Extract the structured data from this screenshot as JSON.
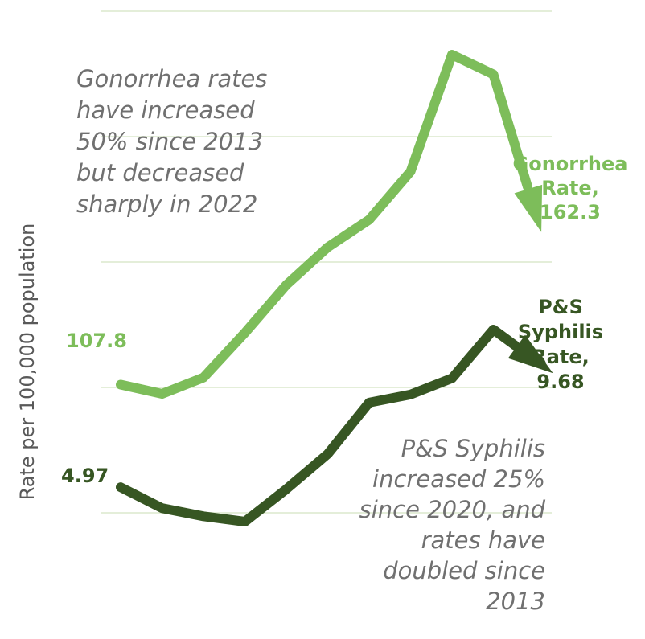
{
  "chart_data": {
    "type": "line",
    "ylabel": "Rate per 100,000 population",
    "grid": true,
    "series": [
      {
        "name": "Gonorrhea",
        "color": "#7dbd5a",
        "values": [
          107.8,
          104.9,
          110.0,
          124.0,
          139.0,
          150.8,
          159.4,
          174.5,
          211.1,
          204.9,
          162.3
        ],
        "start_label": "107.8",
        "end_label": [
          "Gonorrhea",
          "Rate,",
          "162.3"
        ],
        "trend_direction": "down"
      },
      {
        "name": "P&S Syphilis",
        "color": "#375623",
        "values": [
          4.97,
          4.2,
          3.9,
          3.7,
          4.9,
          6.2,
          8.1,
          8.4,
          9.0,
          10.8,
          9.68
        ],
        "start_label": "4.97",
        "end_label": [
          "P&S",
          "Syphilis",
          "Rate,",
          "9.68"
        ],
        "trend_direction": "up"
      }
    ],
    "annotations": [
      {
        "series": "Gonorrhea",
        "lines": [
          "Gonorrhea rates",
          "have increased",
          "50% since 2013",
          "but decreased",
          "sharply in 2022"
        ]
      },
      {
        "series": "P&S Syphilis",
        "lines": [
          "P&S Syphilis",
          "increased 25%",
          "since 2020, and",
          "rates have",
          "doubled since",
          "2013"
        ]
      }
    ]
  }
}
